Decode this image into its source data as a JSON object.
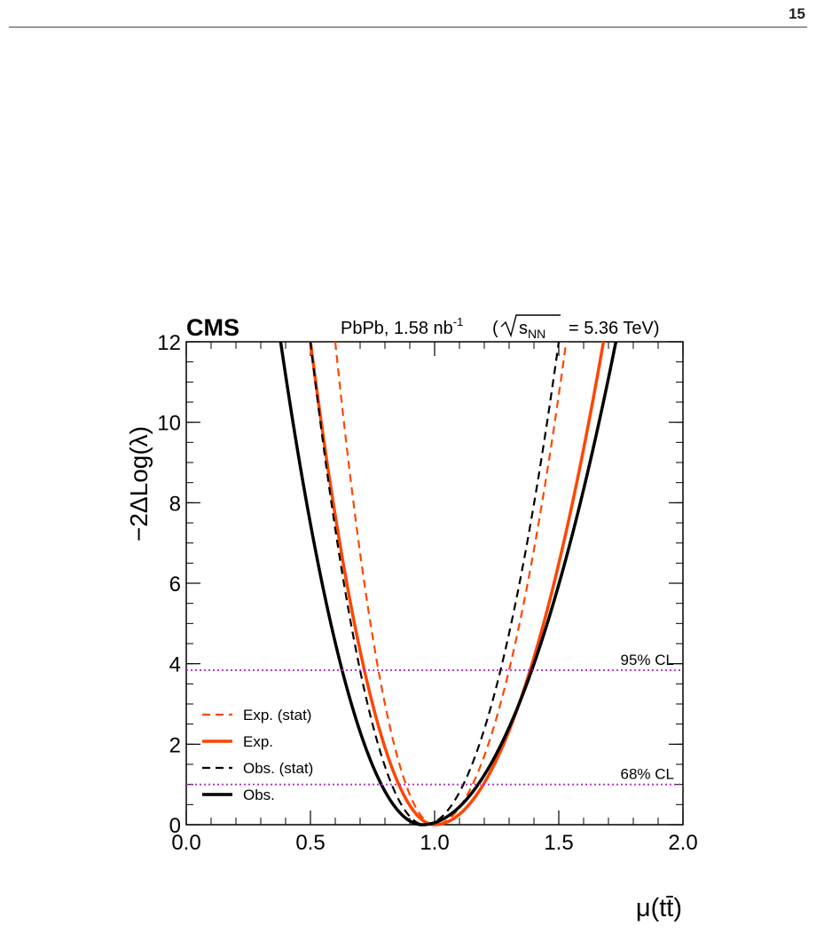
{
  "page": {
    "number": "15"
  },
  "chart_data": {
    "type": "line",
    "experiment": "CMS",
    "dataset_label": "PbPb, 1.58 nb",
    "dataset_exponent": "-1",
    "energy_label_open": "(",
    "energy_symbol": "s",
    "energy_subscript": "NN",
    "energy_value": "=  5.36 TeV)",
    "xlabel": "μ(tt̄)",
    "ylabel": "−2ΔLog(λ)",
    "xlim": [
      0.0,
      2.0
    ],
    "ylim": [
      0,
      12
    ],
    "xticks": [
      "0.0",
      "0.5",
      "1.0",
      "1.5",
      "2.0"
    ],
    "yticks": [
      "0",
      "2",
      "4",
      "6",
      "8",
      "10",
      "12"
    ],
    "reference_lines": [
      {
        "label": "95% CL",
        "y": 3.84,
        "color": "#b030c0"
      },
      {
        "label": "68% CL",
        "y": 1.0,
        "color": "#b030c0"
      }
    ],
    "series": [
      {
        "name": "Exp. (stat)",
        "color": "#ff4500",
        "style": "dashed",
        "minimum": 1.0,
        "x_left_at_ymax": 0.6,
        "x_right_at_ymax": 1.53
      },
      {
        "name": "Exp.",
        "color": "#ff4500",
        "style": "solid",
        "minimum": 1.0,
        "x_left_at_ymax": 0.5,
        "x_right_at_ymax": 1.68
      },
      {
        "name": "Obs. (stat)",
        "color": "#000000",
        "style": "dashed",
        "minimum": 0.96,
        "x_left_at_ymax": 0.5,
        "x_right_at_ymax": 1.5
      },
      {
        "name": "Obs.",
        "color": "#000000",
        "style": "solid",
        "minimum": 0.95,
        "x_left_at_ymax": 0.38,
        "x_right_at_ymax": 1.73
      }
    ],
    "legend_position": "bottom-left"
  }
}
